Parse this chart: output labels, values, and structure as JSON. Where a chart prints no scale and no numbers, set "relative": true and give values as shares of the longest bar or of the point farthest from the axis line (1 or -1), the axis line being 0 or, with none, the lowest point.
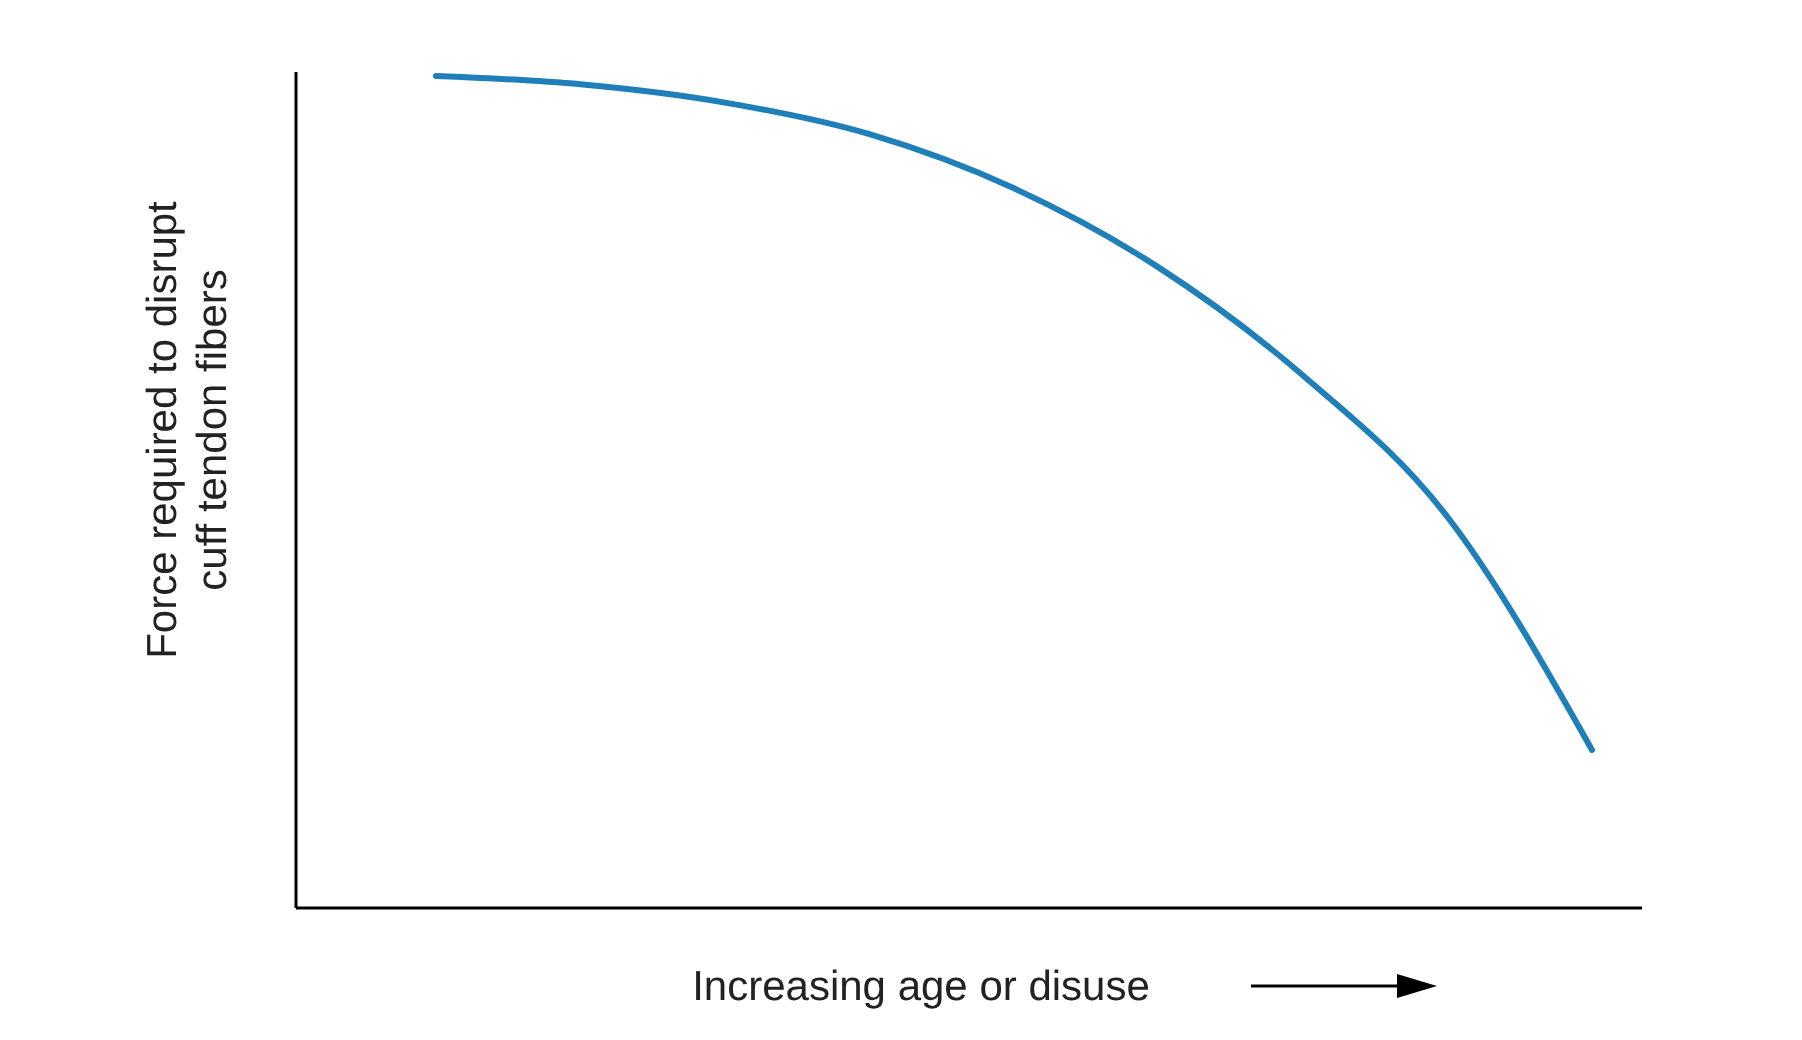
{
  "chart_data": {
    "type": "line",
    "relative": true,
    "xlabel": "Increasing age or disuse",
    "ylabel": "Force required to disrupt\ncuff tendon fibers",
    "categories": [
      null,
      null,
      null,
      null,
      null,
      null,
      null,
      null,
      null
    ],
    "series": [
      {
        "color": "#1f7fb8",
        "values": [
          1.0,
          0.99,
          0.968,
          0.93,
          0.865,
          0.77,
          0.64,
          0.47,
          0.19
        ]
      }
    ],
    "marker": "none",
    "line_style": "solid"
  }
}
